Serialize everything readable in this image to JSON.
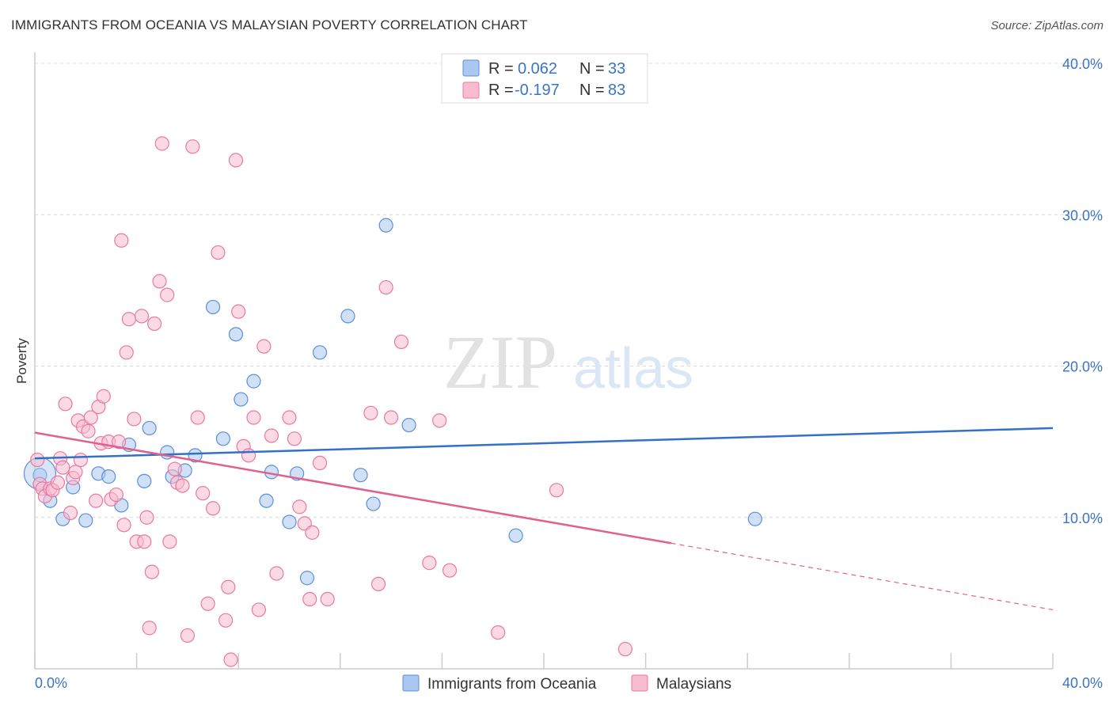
{
  "header": {
    "title": "IMMIGRANTS FROM OCEANIA VS MALAYSIAN POVERTY CORRELATION CHART",
    "source": "Source: ZipAtlas.com"
  },
  "watermark": {
    "zip": "ZIP",
    "atlas": "atlas"
  },
  "legend_top": {
    "rows": [
      {
        "r_label": "R =",
        "r_value": "0.062",
        "n_label": "N =",
        "n_value": "33",
        "color": "#aac8f0"
      },
      {
        "r_label": "R =",
        "r_value": "-0.197",
        "n_label": "N =",
        "n_value": "83",
        "color": "#f7bcd0"
      }
    ]
  },
  "legend_bottom": {
    "items": [
      {
        "label": "Immigrants from Oceania",
        "color": "#aac8f0"
      },
      {
        "label": "Malaysians",
        "color": "#f7bcd0"
      }
    ]
  },
  "chart_data": {
    "type": "scatter",
    "title": "IMMIGRANTS FROM OCEANIA VS MALAYSIAN POVERTY CORRELATION CHART",
    "xlabel": "",
    "ylabel": "Poverty",
    "xlim": [
      0,
      40
    ],
    "ylim": [
      0,
      40
    ],
    "x_tick_labels": [
      "0.0%",
      "40.0%"
    ],
    "y_ticks": [
      10,
      20,
      30,
      40
    ],
    "y_tick_labels": [
      "10.0%",
      "20.0%",
      "30.0%",
      "40.0%"
    ],
    "grid": true,
    "legend_position": "top-center",
    "series": [
      {
        "name": "Immigrants from Oceania",
        "color": "#5b8fd6",
        "fill": "#aac8f0",
        "trend": {
          "x": [
            0,
            40
          ],
          "y": [
            13.9,
            15.9
          ],
          "color": "#3370c8"
        },
        "points": [
          [
            0.2,
            12.8
          ],
          [
            0.6,
            11.1
          ],
          [
            1.1,
            9.9
          ],
          [
            1.5,
            12.0
          ],
          [
            2.0,
            9.8
          ],
          [
            2.5,
            12.9
          ],
          [
            2.9,
            12.7
          ],
          [
            3.4,
            10.8
          ],
          [
            3.7,
            14.8
          ],
          [
            4.3,
            12.4
          ],
          [
            4.5,
            15.9
          ],
          [
            5.2,
            14.3
          ],
          [
            5.4,
            12.7
          ],
          [
            5.9,
            13.1
          ],
          [
            6.3,
            14.1
          ],
          [
            7.0,
            23.9
          ],
          [
            7.4,
            15.2
          ],
          [
            7.9,
            22.1
          ],
          [
            8.1,
            17.8
          ],
          [
            8.6,
            19.0
          ],
          [
            9.1,
            11.1
          ],
          [
            9.3,
            13.0
          ],
          [
            10.0,
            9.7
          ],
          [
            10.3,
            12.9
          ],
          [
            10.7,
            6.0
          ],
          [
            11.2,
            20.9
          ],
          [
            12.3,
            23.3
          ],
          [
            12.8,
            12.8
          ],
          [
            13.3,
            10.9
          ],
          [
            13.8,
            29.3
          ],
          [
            14.7,
            16.1
          ],
          [
            18.9,
            8.8
          ],
          [
            28.3,
            9.9
          ]
        ]
      },
      {
        "name": "Malaysians",
        "color": "#e8799f",
        "fill": "#f7bcd0",
        "trend": {
          "x": [
            0,
            25
          ],
          "y": [
            15.6,
            8.3
          ],
          "color": "#e0608e",
          "dashed_extension": {
            "x": [
              25,
              40
            ],
            "y": [
              8.3,
              3.9
            ]
          }
        },
        "points": [
          [
            0.1,
            13.8
          ],
          [
            0.2,
            12.2
          ],
          [
            0.3,
            11.9
          ],
          [
            0.4,
            11.4
          ],
          [
            0.6,
            11.9
          ],
          [
            0.7,
            11.8
          ],
          [
            0.9,
            12.3
          ],
          [
            1.0,
            13.9
          ],
          [
            1.1,
            13.3
          ],
          [
            1.2,
            17.5
          ],
          [
            1.4,
            10.3
          ],
          [
            1.5,
            12.6
          ],
          [
            1.6,
            13.0
          ],
          [
            1.7,
            16.4
          ],
          [
            1.8,
            13.8
          ],
          [
            1.9,
            16.0
          ],
          [
            2.1,
            15.7
          ],
          [
            2.2,
            16.6
          ],
          [
            2.4,
            11.1
          ],
          [
            2.5,
            17.3
          ],
          [
            2.6,
            14.9
          ],
          [
            2.7,
            18.0
          ],
          [
            2.9,
            15.0
          ],
          [
            3.0,
            11.2
          ],
          [
            3.2,
            11.5
          ],
          [
            3.3,
            15.0
          ],
          [
            3.4,
            28.3
          ],
          [
            3.5,
            9.5
          ],
          [
            3.6,
            20.9
          ],
          [
            3.7,
            23.1
          ],
          [
            3.9,
            16.5
          ],
          [
            4.0,
            8.4
          ],
          [
            4.2,
            23.3
          ],
          [
            4.3,
            8.4
          ],
          [
            4.4,
            10.0
          ],
          [
            4.5,
            2.7
          ],
          [
            4.6,
            6.4
          ],
          [
            4.7,
            22.8
          ],
          [
            4.9,
            25.6
          ],
          [
            5.0,
            34.7
          ],
          [
            5.2,
            24.7
          ],
          [
            5.3,
            8.4
          ],
          [
            5.5,
            13.2
          ],
          [
            5.6,
            12.3
          ],
          [
            5.8,
            12.1
          ],
          [
            6.0,
            2.2
          ],
          [
            6.2,
            34.5
          ],
          [
            6.4,
            16.6
          ],
          [
            6.6,
            11.6
          ],
          [
            6.8,
            4.3
          ],
          [
            7.0,
            10.6
          ],
          [
            7.2,
            27.5
          ],
          [
            7.5,
            3.2
          ],
          [
            7.6,
            5.4
          ],
          [
            7.7,
            0.6
          ],
          [
            7.9,
            33.6
          ],
          [
            8.0,
            23.6
          ],
          [
            8.2,
            14.7
          ],
          [
            8.4,
            14.1
          ],
          [
            8.6,
            16.6
          ],
          [
            8.8,
            3.9
          ],
          [
            9.0,
            21.3
          ],
          [
            9.3,
            15.4
          ],
          [
            9.5,
            6.3
          ],
          [
            10.0,
            16.6
          ],
          [
            10.2,
            15.2
          ],
          [
            10.4,
            10.7
          ],
          [
            10.6,
            9.6
          ],
          [
            10.8,
            4.6
          ],
          [
            10.9,
            9.0
          ],
          [
            11.2,
            13.6
          ],
          [
            11.5,
            4.6
          ],
          [
            13.2,
            16.9
          ],
          [
            13.5,
            5.6
          ],
          [
            13.8,
            25.2
          ],
          [
            14.0,
            16.6
          ],
          [
            14.4,
            21.6
          ],
          [
            15.5,
            7.0
          ],
          [
            16.3,
            6.5
          ],
          [
            18.2,
            2.4
          ],
          [
            20.5,
            11.8
          ],
          [
            23.2,
            1.3
          ],
          [
            15.9,
            16.4
          ]
        ]
      }
    ]
  }
}
